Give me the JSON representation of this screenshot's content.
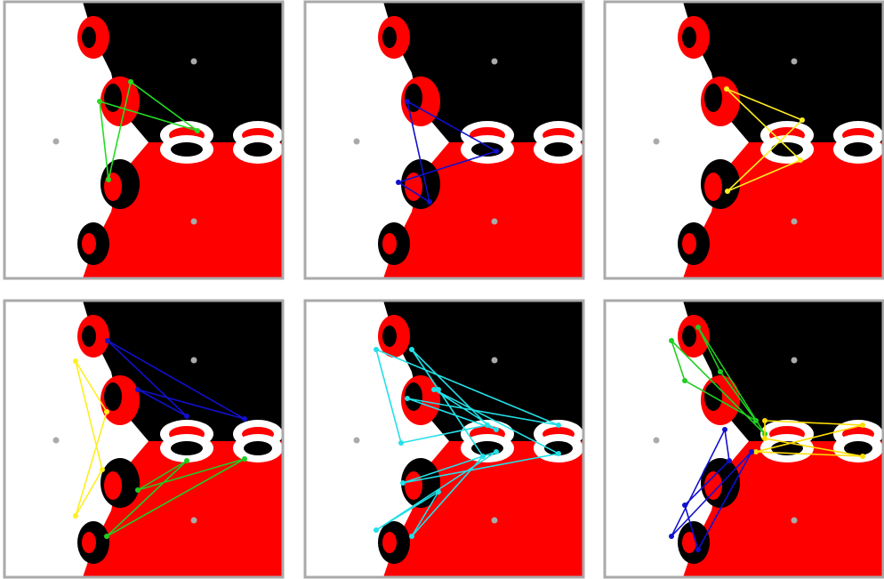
{
  "panels": [
    {
      "cycles": [
        {
          "color": "#22dd22"
        }
      ]
    },
    {
      "cycles": [
        {
          "color": "#1010cc"
        }
      ]
    },
    {
      "cycles": [
        {
          "color": "#ffee22"
        }
      ]
    },
    {
      "cycles": [
        {
          "color": "#1010cc"
        },
        {
          "color": "#ffee22"
        },
        {
          "color": "#22cc22"
        }
      ]
    },
    {
      "cycles": [
        {
          "color": "#22e0e8"
        }
      ]
    },
    {
      "cycles": [
        {
          "color": "#22cc22"
        },
        {
          "color": "#ffdd00"
        },
        {
          "color": "#1010cc"
        }
      ]
    }
  ]
}
